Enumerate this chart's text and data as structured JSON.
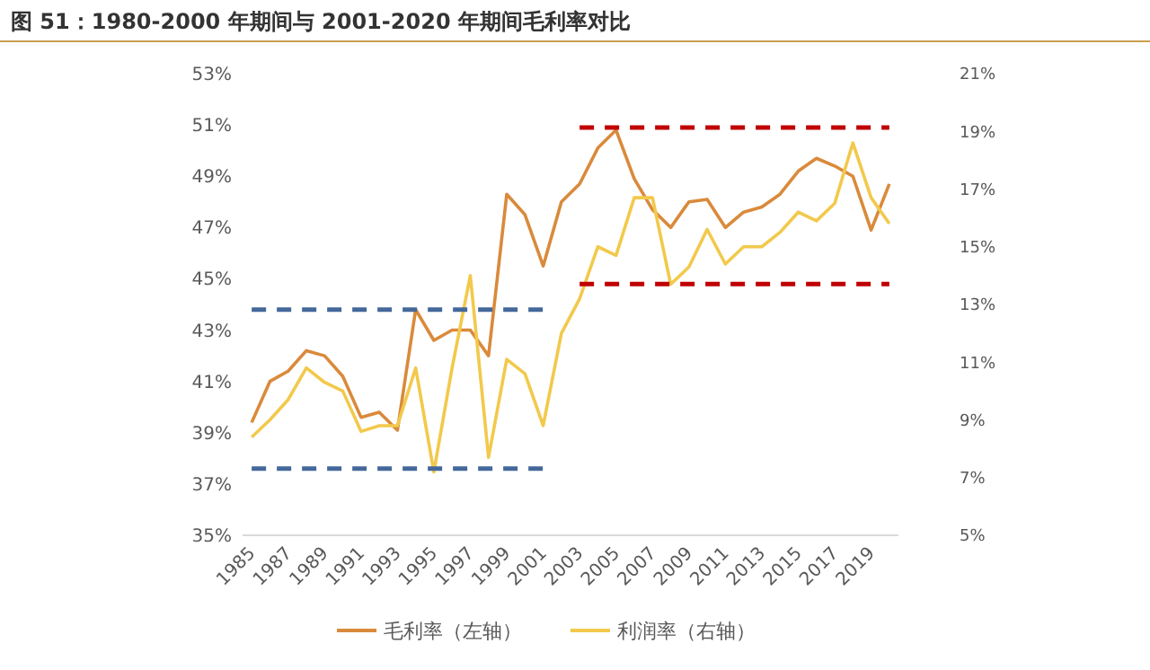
{
  "chart_data": {
    "type": "line",
    "title": "图 51：1980-2000 年期间与 2001-2020 年期间毛利率对比",
    "x": [
      1985,
      1986,
      1987,
      1988,
      1989,
      1990,
      1991,
      1992,
      1993,
      1994,
      1995,
      1996,
      1997,
      1998,
      1999,
      2000,
      2001,
      2002,
      2003,
      2004,
      2005,
      2006,
      2007,
      2008,
      2009,
      2010,
      2011,
      2012,
      2013,
      2014,
      2015,
      2016,
      2017,
      2018,
      2019,
      2020
    ],
    "xlim": [
      1984.5,
      2020.5
    ],
    "xticks": [
      1985,
      1987,
      1989,
      1991,
      1993,
      1995,
      1997,
      1999,
      2001,
      2003,
      2005,
      2007,
      2009,
      2011,
      2013,
      2015,
      2017,
      2019
    ],
    "ylim": [
      35,
      53
    ],
    "yticks": [
      {
        "value": 35,
        "label": "35%"
      },
      {
        "value": 37,
        "label": "37%"
      },
      {
        "value": 39,
        "label": "39%"
      },
      {
        "value": 41,
        "label": "41%"
      },
      {
        "value": 43,
        "label": "43%"
      },
      {
        "value": 45,
        "label": "45%"
      },
      {
        "value": 47,
        "label": "47%"
      },
      {
        "value": 49,
        "label": "49%"
      },
      {
        "value": 51,
        "label": "51%"
      },
      {
        "value": 53,
        "label": "53%"
      }
    ],
    "y2lim": [
      5,
      21
    ],
    "y2ticks": [
      {
        "value": 5,
        "label": "5%"
      },
      {
        "value": 7,
        "label": "7%"
      },
      {
        "value": 9,
        "label": "9%"
      },
      {
        "value": 11,
        "label": "11%"
      },
      {
        "value": 13,
        "label": "13%"
      },
      {
        "value": 15,
        "label": "15%"
      },
      {
        "value": 17,
        "label": "17%"
      },
      {
        "value": 19,
        "label": "19%"
      },
      {
        "value": 21,
        "label": "21%"
      }
    ],
    "legend": "bottom",
    "grid": false,
    "series": [
      {
        "name": "毛利率（左轴）",
        "color": "#d98a3b",
        "values": [
          39.4,
          41.0,
          41.4,
          42.2,
          42.0,
          41.2,
          39.6,
          39.8,
          39.1,
          43.8,
          42.6,
          43.0,
          43.0,
          42.0,
          48.3,
          47.5,
          45.5,
          48.0,
          48.7,
          50.1,
          50.8,
          48.9,
          47.7,
          47.0,
          48.0,
          48.1,
          47.0,
          47.6,
          47.8,
          48.3,
          49.2,
          49.7,
          49.4,
          49.0,
          46.9,
          48.7
        ]
      },
      {
        "name": "利润率（右轴）",
        "color": "#f2c94c",
        "axis": "y2",
        "values": [
          8.4,
          9.0,
          9.7,
          10.8,
          10.3,
          10.0,
          8.6,
          8.8,
          8.8,
          10.8,
          7.2,
          10.8,
          14.0,
          7.7,
          11.1,
          10.6,
          8.8,
          12.0,
          13.2,
          15.0,
          14.7,
          16.7,
          16.7,
          13.7,
          14.3,
          15.6,
          14.4,
          15.0,
          15.0,
          15.5,
          16.2,
          15.9,
          16.5,
          18.6,
          16.7,
          15.8
        ]
      },
      {
        "type": "line",
        "color": "#44689a",
        "line_style": "dashed",
        "x": [
          1985,
          2001
        ],
        "values": [
          43.8,
          43.8
        ]
      },
      {
        "type": "line",
        "color": "#44689a",
        "line_style": "dashed",
        "x": [
          1985,
          2001
        ],
        "values": [
          37.6,
          37.6
        ]
      },
      {
        "type": "line",
        "color": "#c00000",
        "line_style": "dashed",
        "x": [
          2003,
          2020
        ],
        "values": [
          50.9,
          50.9
        ]
      },
      {
        "type": "line",
        "color": "#c00000",
        "line_style": "dashed",
        "x": [
          2003,
          2020
        ],
        "values": [
          44.8,
          44.8
        ]
      }
    ]
  }
}
